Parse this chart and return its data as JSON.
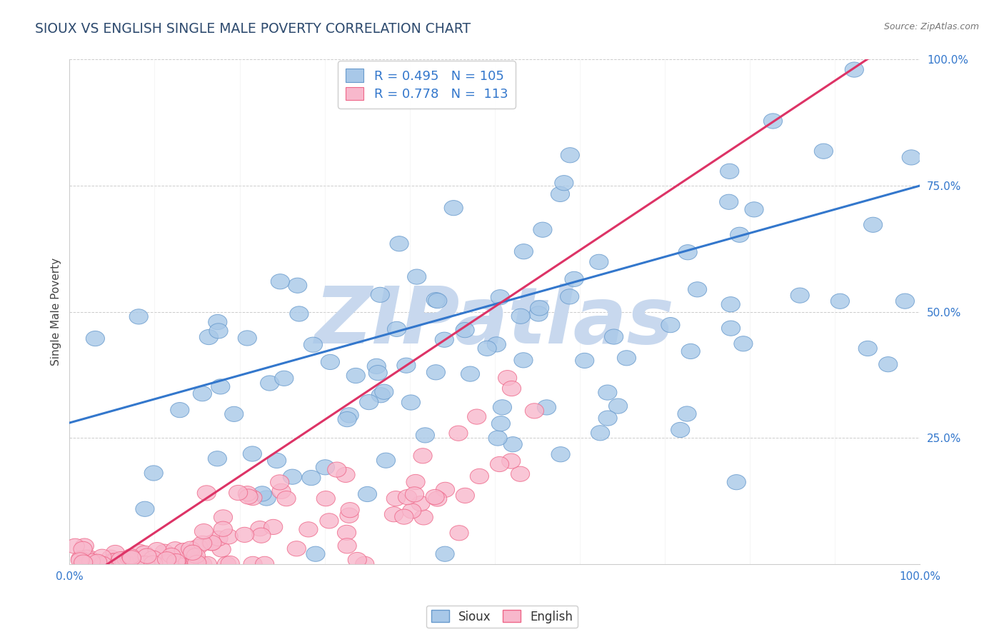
{
  "title": "SIOUX VS ENGLISH SINGLE MALE POVERTY CORRELATION CHART",
  "source": "Source: ZipAtlas.com",
  "ylabel": "Single Male Poverty",
  "title_color": "#2d4a6e",
  "source_color": "#777777",
  "grid_color": "#cccccc",
  "watermark_text": "ZIPatlas",
  "watermark_color": "#c8d8ee",
  "blue_dot_facecolor": "#a8c8e8",
  "blue_dot_edgecolor": "#6699cc",
  "pink_dot_facecolor": "#f8b8cc",
  "pink_dot_edgecolor": "#ee6688",
  "blue_line_color": "#3377cc",
  "pink_line_color": "#dd3366",
  "R_blue": 0.495,
  "N_blue": 105,
  "R_pink": 0.778,
  "N_pink": 113,
  "tick_label_color": "#3377cc",
  "blue_line_intercept": 0.28,
  "blue_line_slope": 0.47,
  "pink_line_intercept": -0.05,
  "pink_line_slope": 1.12
}
